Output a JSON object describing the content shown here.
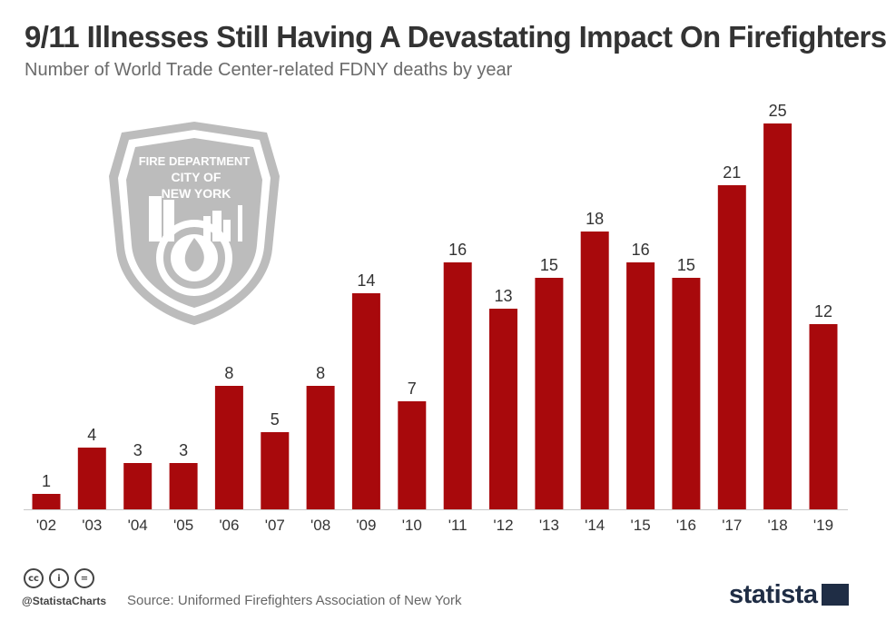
{
  "header": {
    "title": "9/11 Illnesses Still Having A Devastating Impact On Firefighters",
    "subtitle": "Number of World Trade Center-related FDNY deaths by year"
  },
  "badge": {
    "top_text": "FIRE DEPARTMENT",
    "line1": "CITY OF",
    "line2": "NEW YORK"
  },
  "footer": {
    "handle": "@StatistaCharts",
    "source": "Source: Uniformed Firefighters Association of New York",
    "brand": "statista",
    "license_icons": [
      "cc-icon",
      "by-icon",
      "nd-icon"
    ]
  },
  "colors": {
    "bar": "#a8090c",
    "title": "#333333",
    "badge": "#b8b8b8"
  },
  "chart_data": {
    "type": "bar",
    "title": "9/11 Illnesses Still Having A Devastating Impact On Firefighters",
    "subtitle": "Number of World Trade Center-related FDNY deaths by year",
    "xlabel": "",
    "ylabel": "",
    "categories": [
      "'02",
      "'03",
      "'04",
      "'05",
      "'06",
      "'07",
      "'08",
      "'09",
      "'10",
      "'11",
      "'12",
      "'13",
      "'14",
      "'15",
      "'16",
      "'17",
      "'18",
      "'19"
    ],
    "values": [
      1,
      4,
      3,
      3,
      8,
      5,
      8,
      14,
      7,
      16,
      13,
      15,
      18,
      16,
      15,
      21,
      25,
      12
    ],
    "ylim": [
      0,
      25
    ],
    "data_labels": true,
    "grid": false,
    "legend": "none"
  }
}
